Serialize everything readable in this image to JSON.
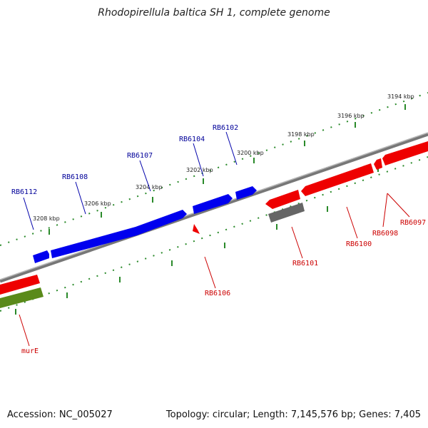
{
  "title": "Rhodopirellula baltica SH 1, complete genome",
  "footer": {
    "accession": "Accession: NC_005027",
    "summary": "Topology: circular; Length: 7,145,576 bp; Genes: 7,405"
  },
  "scale_labels": [
    "3194 kbp",
    "3196 kbp",
    "3198 kbp",
    "3200 kbp",
    "3202 kbp",
    "3204 kbp",
    "3206 kbp",
    "3208 kbp"
  ],
  "colors": {
    "forward_gene": "#0000ee",
    "reverse_gene": "#ee0000",
    "other_gene": "#666666",
    "rna_gene": "#5a8a1a",
    "tick": "#2a8a2a",
    "backbone": "#808080",
    "label_forward": "#000099",
    "label_reverse": "#cc0000"
  },
  "genes": [
    {
      "id": "RB6112",
      "label": "RB6112",
      "strand": "forward"
    },
    {
      "id": "RB6108",
      "label": "RB6108",
      "strand": "forward"
    },
    {
      "id": "RB6107",
      "label": "RB6107",
      "strand": "forward"
    },
    {
      "id": "RB6104",
      "label": "RB6104",
      "strand": "forward"
    },
    {
      "id": "RB6102",
      "label": "RB6102",
      "strand": "forward"
    },
    {
      "id": "RB6106",
      "label": "RB6106",
      "strand": "reverse"
    },
    {
      "id": "RB6101",
      "label": "RB6101",
      "strand": "reverse"
    },
    {
      "id": "RB6100",
      "label": "RB6100",
      "strand": "reverse"
    },
    {
      "id": "RB6098",
      "label": "RB6098",
      "strand": "reverse"
    },
    {
      "id": "RB6097",
      "label": "RB6097",
      "strand": "reverse"
    },
    {
      "id": "murE",
      "label": "murE",
      "strand": "reverse"
    }
  ]
}
